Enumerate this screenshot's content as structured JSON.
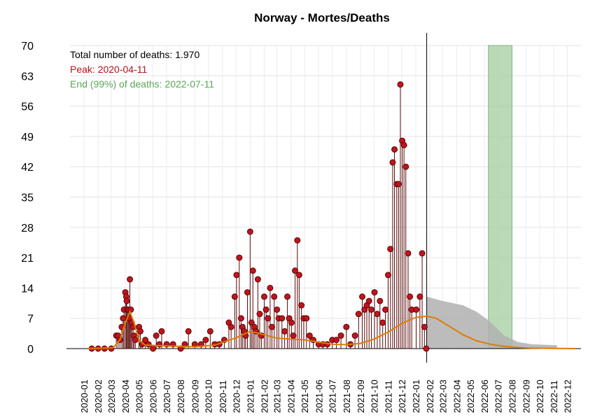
{
  "chart_data": {
    "type": "line",
    "title": "Norway - Mortes/Deaths",
    "xlabel": "",
    "ylabel": "",
    "ylim": [
      0,
      70
    ],
    "yticks": [
      0,
      7,
      14,
      21,
      28,
      35,
      42,
      49,
      56,
      63,
      70
    ],
    "xlim": [
      "2019-12-01",
      "2022-12-31"
    ],
    "xticks": [
      "2020-01",
      "2020-02",
      "2020-03",
      "2020-04",
      "2020-05",
      "2020-06",
      "2020-07",
      "2020-08",
      "2020-09",
      "2020-10",
      "2020-11",
      "2020-12",
      "2021-01",
      "2021-02",
      "2021-03",
      "2021-04",
      "2021-05",
      "2021-06",
      "2021-07",
      "2021-08",
      "2021-09",
      "2021-10",
      "2021-11",
      "2021-12",
      "2022-01",
      "2022-02",
      "2022-03",
      "2022-04",
      "2022-05",
      "2022-06",
      "2022-07",
      "2022-08",
      "2022-09",
      "2022-10",
      "2022-11",
      "2022-12"
    ],
    "grid": true,
    "annotations": {
      "total": "Total number of deaths: 1.970",
      "peak": "Peak: 2020-04-11",
      "end": "End (99%) of deaths: 2022-07-11"
    },
    "colors": {
      "observed": "#c0141c",
      "observed_stroke": "#5a0a0a",
      "fit": "#e07b00",
      "band": "#b0b0b0",
      "end_region": "#a9d0a5",
      "peak_text": "#b5121b",
      "end_text": "#5aa75a",
      "today_line": "#000000"
    },
    "today": "2022-01-25",
    "end_region": [
      "2022-06-10",
      "2022-08-01"
    ],
    "fit_curve": [
      [
        "2020-01-10",
        0
      ],
      [
        "2020-03-05",
        0.2
      ],
      [
        "2020-03-20",
        2
      ],
      [
        "2020-04-01",
        6
      ],
      [
        "2020-04-11",
        8.5
      ],
      [
        "2020-04-20",
        6
      ],
      [
        "2020-05-01",
        2
      ],
      [
        "2020-05-15",
        0.8
      ],
      [
        "2020-07-01",
        0.6
      ],
      [
        "2020-09-01",
        0.4
      ],
      [
        "2020-10-15",
        0.8
      ],
      [
        "2020-12-01",
        2.5
      ],
      [
        "2021-01-01",
        4
      ],
      [
        "2021-02-01",
        3.2
      ],
      [
        "2021-03-01",
        2.4
      ],
      [
        "2021-04-01",
        2.2
      ],
      [
        "2021-05-01",
        2
      ],
      [
        "2021-06-01",
        1.5
      ],
      [
        "2021-07-01",
        1
      ],
      [
        "2021-08-01",
        0.9
      ],
      [
        "2021-09-01",
        1.2
      ],
      [
        "2021-10-01",
        2.2
      ],
      [
        "2021-11-01",
        3.8
      ],
      [
        "2021-12-01",
        5.8
      ],
      [
        "2022-01-01",
        7.2
      ],
      [
        "2022-01-25",
        7.5
      ],
      [
        "2022-02-15",
        7
      ],
      [
        "2022-03-15",
        5.2
      ],
      [
        "2022-04-15",
        3.2
      ],
      [
        "2022-05-15",
        1.8
      ],
      [
        "2022-06-15",
        1
      ],
      [
        "2022-07-15",
        0.5
      ],
      [
        "2022-08-15",
        0.25
      ],
      [
        "2022-09-15",
        0.1
      ],
      [
        "2022-12-20",
        0
      ]
    ],
    "forecast_band": [
      [
        "2022-01-25",
        12,
        0
      ],
      [
        "2022-03-01",
        11,
        0
      ],
      [
        "2022-04-15",
        10,
        0
      ],
      [
        "2022-05-15",
        8.5,
        0
      ],
      [
        "2022-06-10",
        6.5,
        0
      ],
      [
        "2022-07-15",
        3,
        0
      ],
      [
        "2022-08-15",
        1.5,
        0
      ],
      [
        "2022-09-15",
        1,
        0
      ],
      [
        "2022-11-01",
        0.8,
        0
      ],
      [
        "2022-11-08",
        0.8,
        0
      ]
    ],
    "daily_deaths": [
      [
        "2020-01-18",
        0
      ],
      [
        "2020-02-01",
        0
      ],
      [
        "2020-02-15",
        0
      ],
      [
        "2020-03-01",
        0
      ],
      [
        "2020-03-12",
        3
      ],
      [
        "2020-03-16",
        3
      ],
      [
        "2020-03-20",
        2
      ],
      [
        "2020-03-24",
        5
      ],
      [
        "2020-03-27",
        7
      ],
      [
        "2020-03-29",
        9
      ],
      [
        "2020-04-01",
        13
      ],
      [
        "2020-04-03",
        12
      ],
      [
        "2020-04-04",
        11
      ],
      [
        "2020-04-06",
        9
      ],
      [
        "2020-04-08",
        9
      ],
      [
        "2020-04-10",
        7
      ],
      [
        "2020-04-11",
        16
      ],
      [
        "2020-04-13",
        9
      ],
      [
        "2020-04-15",
        6
      ],
      [
        "2020-04-18",
        5
      ],
      [
        "2020-04-20",
        3
      ],
      [
        "2020-04-23",
        2
      ],
      [
        "2020-05-01",
        5
      ],
      [
        "2020-05-04",
        4
      ],
      [
        "2020-05-08",
        1
      ],
      [
        "2020-05-15",
        2
      ],
      [
        "2020-05-22",
        1
      ],
      [
        "2020-06-01",
        0
      ],
      [
        "2020-06-08",
        3
      ],
      [
        "2020-06-15",
        1
      ],
      [
        "2020-06-20",
        4
      ],
      [
        "2020-07-01",
        1
      ],
      [
        "2020-07-15",
        1
      ],
      [
        "2020-08-01",
        0
      ],
      [
        "2020-08-10",
        1
      ],
      [
        "2020-08-18",
        4
      ],
      [
        "2020-09-01",
        1
      ],
      [
        "2020-09-15",
        1
      ],
      [
        "2020-09-25",
        2
      ],
      [
        "2020-10-05",
        4
      ],
      [
        "2020-10-15",
        1
      ],
      [
        "2020-10-25",
        1
      ],
      [
        "2020-11-05",
        2
      ],
      [
        "2020-11-15",
        6
      ],
      [
        "2020-11-20",
        5
      ],
      [
        "2020-11-28",
        12
      ],
      [
        "2020-12-02",
        17
      ],
      [
        "2020-12-08",
        21
      ],
      [
        "2020-12-12",
        7
      ],
      [
        "2020-12-15",
        5
      ],
      [
        "2020-12-19",
        4
      ],
      [
        "2020-12-22",
        3
      ],
      [
        "2020-12-26",
        13
      ],
      [
        "2021-01-01",
        27
      ],
      [
        "2021-01-04",
        6
      ],
      [
        "2021-01-07",
        18
      ],
      [
        "2021-01-10",
        5
      ],
      [
        "2021-01-14",
        4
      ],
      [
        "2021-01-18",
        16
      ],
      [
        "2021-01-22",
        8
      ],
      [
        "2021-01-26",
        3
      ],
      [
        "2021-02-01",
        12
      ],
      [
        "2021-02-05",
        9
      ],
      [
        "2021-02-09",
        7
      ],
      [
        "2021-02-14",
        14
      ],
      [
        "2021-02-18",
        5
      ],
      [
        "2021-02-23",
        12
      ],
      [
        "2021-03-01",
        9
      ],
      [
        "2021-03-05",
        7
      ],
      [
        "2021-03-12",
        7
      ],
      [
        "2021-03-18",
        4
      ],
      [
        "2021-03-24",
        12
      ],
      [
        "2021-03-28",
        7
      ],
      [
        "2021-04-02",
        6
      ],
      [
        "2021-04-06",
        3
      ],
      [
        "2021-04-10",
        18
      ],
      [
        "2021-04-15",
        25
      ],
      [
        "2021-04-19",
        17
      ],
      [
        "2021-04-24",
        10
      ],
      [
        "2021-04-29",
        7
      ],
      [
        "2021-05-05",
        7
      ],
      [
        "2021-05-12",
        3
      ],
      [
        "2021-05-20",
        2
      ],
      [
        "2021-06-01",
        1
      ],
      [
        "2021-06-10",
        1
      ],
      [
        "2021-06-20",
        1
      ],
      [
        "2021-07-01",
        2
      ],
      [
        "2021-07-10",
        2
      ],
      [
        "2021-07-20",
        3
      ],
      [
        "2021-08-01",
        5
      ],
      [
        "2021-08-10",
        1
      ],
      [
        "2021-08-20",
        3
      ],
      [
        "2021-08-28",
        8
      ],
      [
        "2021-09-05",
        12
      ],
      [
        "2021-09-10",
        9
      ],
      [
        "2021-09-15",
        10
      ],
      [
        "2021-09-20",
        11
      ],
      [
        "2021-09-25",
        9
      ],
      [
        "2021-10-02",
        13
      ],
      [
        "2021-10-08",
        8
      ],
      [
        "2021-10-14",
        11
      ],
      [
        "2021-10-20",
        6
      ],
      [
        "2021-10-26",
        9
      ],
      [
        "2021-11-01",
        17
      ],
      [
        "2021-11-06",
        23
      ],
      [
        "2021-11-11",
        43
      ],
      [
        "2021-11-15",
        46
      ],
      [
        "2021-11-20",
        38
      ],
      [
        "2021-11-24",
        38
      ],
      [
        "2021-11-28",
        61
      ],
      [
        "2021-12-02",
        48
      ],
      [
        "2021-12-06",
        47
      ],
      [
        "2021-12-10",
        42
      ],
      [
        "2021-12-15",
        22
      ],
      [
        "2021-12-19",
        12
      ],
      [
        "2021-12-23",
        9
      ],
      [
        "2022-01-02",
        9
      ],
      [
        "2022-01-10",
        12
      ],
      [
        "2022-01-15",
        22
      ],
      [
        "2022-01-20",
        5
      ],
      [
        "2022-01-24",
        0
      ]
    ]
  }
}
